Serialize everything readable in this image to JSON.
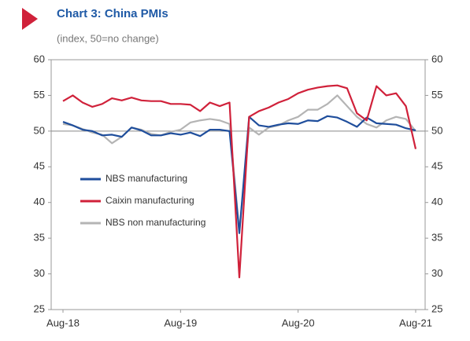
{
  "chart_data": {
    "type": "line",
    "title": "Chart 3: China PMIs",
    "subtitle": "(index, 50=no change)",
    "categories": [
      "Aug-18",
      null,
      null,
      null,
      null,
      null,
      null,
      null,
      null,
      null,
      null,
      null,
      "Aug-19",
      null,
      null,
      null,
      null,
      null,
      null,
      null,
      null,
      null,
      null,
      null,
      "Aug-20",
      null,
      null,
      null,
      null,
      null,
      null,
      null,
      null,
      null,
      null,
      null,
      "Aug-21"
    ],
    "series": [
      {
        "name": "NBS manufacturing",
        "color": "#1f4e9c",
        "values": [
          51.3,
          50.8,
          50.2,
          50.0,
          49.4,
          49.5,
          49.2,
          50.5,
          50.1,
          49.4,
          49.4,
          49.7,
          49.5,
          49.8,
          49.3,
          50.2,
          50.2,
          50.0,
          35.7,
          52.0,
          50.8,
          50.6,
          50.9,
          51.1,
          51.0,
          51.5,
          51.4,
          52.1,
          51.9,
          51.3,
          50.6,
          51.9,
          51.1,
          51.0,
          50.9,
          50.4,
          50.1
        ]
      },
      {
        "name": "Caixin manufacturing",
        "color": "#d0213a",
        "values": [
          54.2,
          55.0,
          54.0,
          53.4,
          53.8,
          54.6,
          54.3,
          54.7,
          54.3,
          54.2,
          54.2,
          53.8,
          53.8,
          53.7,
          52.8,
          54.0,
          53.5,
          54.0,
          29.5,
          52.0,
          52.8,
          53.3,
          54.0,
          54.5,
          55.3,
          55.8,
          56.1,
          56.3,
          56.4,
          56.0,
          52.5,
          51.5,
          56.3,
          55.0,
          55.3,
          53.5,
          47.5
        ]
      },
      {
        "name": "NBS non manufacturing",
        "color": "#b4b4b4",
        "values": [
          51.0,
          50.8,
          50.3,
          49.8,
          49.5,
          48.3,
          49.2,
          50.5,
          50.2,
          49.6,
          49.4,
          49.9,
          50.2,
          51.2,
          51.5,
          51.7,
          51.5,
          51.0,
          36.0,
          50.5,
          49.5,
          50.5,
          50.8,
          51.5,
          52.0,
          53.0,
          53.0,
          53.8,
          55.0,
          53.5,
          52.0,
          51.0,
          50.5,
          51.5,
          52.0,
          51.7,
          50.0
        ]
      }
    ],
    "ylim": [
      25,
      60
    ],
    "yticks": [
      25,
      30,
      35,
      40,
      45,
      50,
      55,
      60
    ],
    "y2lim": [
      25,
      60
    ],
    "y2ticks": [
      25,
      30,
      35,
      40,
      45,
      50,
      55,
      60
    ],
    "reference_line": 50,
    "legend": "left"
  }
}
